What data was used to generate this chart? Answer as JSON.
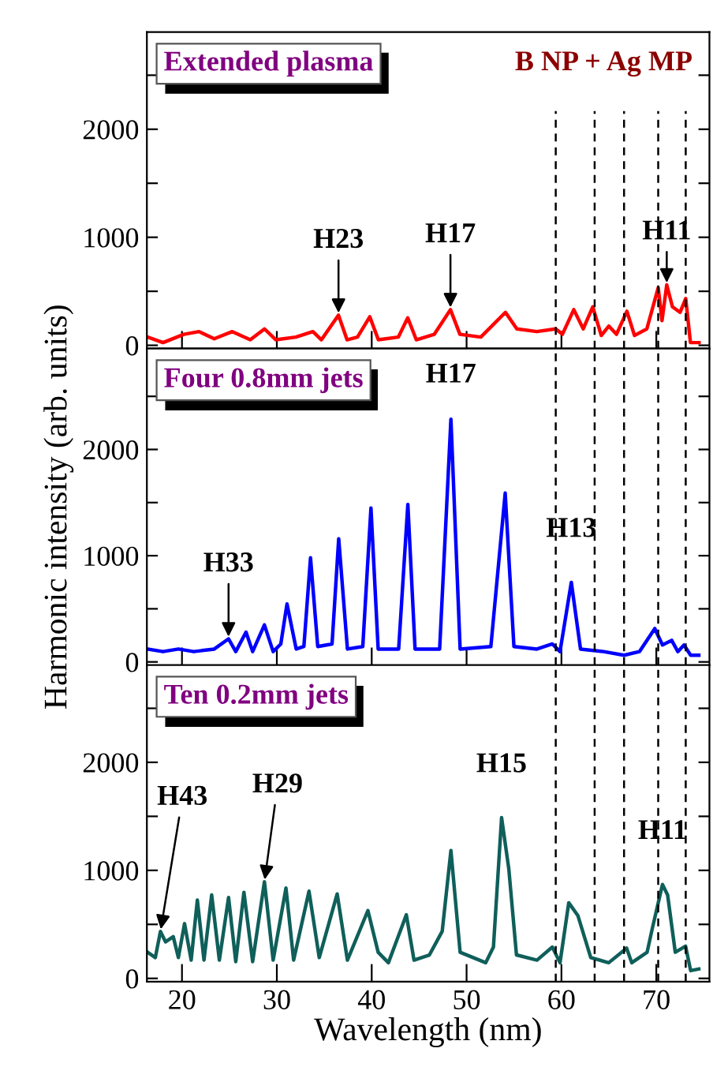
{
  "chart_data": [
    {
      "type": "line",
      "title": "Extended plasma",
      "xlim": [
        16.3,
        75.6
      ],
      "ylim": [
        -30,
        2900
      ],
      "tick_labels": "y",
      "grid": false,
      "legend": false,
      "yticks": [
        0,
        {
          "value": 500,
          "label": null
        },
        1000,
        {
          "value": 1500,
          "label": null
        },
        2000,
        {
          "value": 2500,
          "label": null
        }
      ],
      "xticks": [
        20,
        30,
        40,
        50,
        60,
        70
      ],
      "series": [
        {
          "color": "#ff0000",
          "x": [
            16.38,
            18.0,
            20.2,
            21.8,
            23.4,
            25.3,
            27.2,
            28.7,
            29.9,
            32.0,
            33.8,
            34.7,
            36.5,
            37.4,
            38.5,
            39.8,
            40.7,
            42.8,
            43.8,
            44.7,
            46.6,
            48.3,
            49.3,
            51.5,
            54.1,
            55.3,
            57.4,
            59.4,
            60.1,
            61.3,
            62.3,
            63.3,
            64.2,
            65.0,
            65.8,
            66.9,
            67.7,
            69.0,
            70.2,
            70.6,
            71.1,
            71.7,
            72.5,
            73.1,
            73.6,
            74.5
          ],
          "values": [
            76,
            25,
            102,
            127,
            61,
            127,
            51,
            152,
            51,
            76,
            127,
            51,
            279,
            51,
            76,
            264,
            51,
            76,
            254,
            51,
            102,
            330,
            102,
            76,
            305,
            152,
            127,
            152,
            102,
            330,
            152,
            356,
            91,
            178,
            102,
            315,
            91,
            152,
            533,
            229,
            559,
            356,
            305,
            432,
            25,
            25
          ]
        }
      ],
      "annotations": [
        "B NP + Ag MP",
        {
          "text": "H23",
          "x": 36.5,
          "y": 279
        },
        {
          "text": "H17",
          "x": 48.3,
          "y": 330
        },
        {
          "text": "H11",
          "x": 71.1,
          "y": 559
        }
      ],
      "ref_lines": [
        {
          "axis": "x",
          "value": 59.4,
          "line_style": "dashed",
          "color": "#000000"
        },
        {
          "axis": "x",
          "value": 63.5,
          "line_style": "dashed",
          "color": "#000000"
        },
        {
          "axis": "x",
          "value": 66.6,
          "line_style": "dashed",
          "color": "#000000"
        },
        {
          "axis": "x",
          "value": 70.2,
          "line_style": "dashed",
          "color": "#000000"
        },
        {
          "axis": "x",
          "value": 73.1,
          "line_style": "dashed",
          "color": "#000000"
        }
      ]
    },
    {
      "type": "line",
      "title": "Four 0.8mm jets",
      "ylabel": "Harmonic intensity (arb. units)",
      "xlim": [
        16.3,
        75.6
      ],
      "ylim": [
        -30,
        2950
      ],
      "tick_labels": "y",
      "grid": false,
      "legend": false,
      "yticks": [
        0,
        {
          "value": 500,
          "label": null
        },
        1000,
        {
          "value": 1500,
          "label": null
        },
        2000,
        {
          "value": 2500,
          "label": null
        }
      ],
      "xticks": [
        20,
        30,
        40,
        50,
        60,
        70
      ],
      "series": [
        {
          "color": "#0000ff",
          "x": [
            16.38,
            18.0,
            19.62,
            21.24,
            23.4,
            24.91,
            25.67,
            26.75,
            27.45,
            28.69,
            29.61,
            30.42,
            31.07,
            32.04,
            32.85,
            33.55,
            34.31,
            35.82,
            36.52,
            37.44,
            39.06,
            39.92,
            40.68,
            42.84,
            43.81,
            44.57,
            47.16,
            48.35,
            49.32,
            52.56,
            54.07,
            54.99,
            57.42,
            59.04,
            59.85,
            61.04,
            62.01,
            64.44,
            66.6,
            68.22,
            69.84,
            70.65,
            71.62,
            72.27,
            72.92,
            73.62,
            74.48
          ],
          "values": [
            121,
            97,
            121,
            97,
            121,
            217,
            97,
            280,
            97,
            348,
            97,
            169,
            546,
            121,
            145,
            980,
            145,
            169,
            1159,
            121,
            145,
            1449,
            121,
            121,
            1483,
            121,
            121,
            2285,
            121,
            145,
            1589,
            145,
            121,
            169,
            97,
            749,
            121,
            97,
            63,
            97,
            314,
            159,
            203,
            97,
            159,
            63,
            63
          ]
        }
      ],
      "annotations": [
        {
          "text": "H33",
          "x": 24.91,
          "y": 217
        },
        {
          "text": "H17",
          "x": 48.35,
          "y": 2285
        },
        {
          "text": "H13",
          "x": 61.04,
          "y": 749
        }
      ],
      "ref_lines": [
        {
          "axis": "x",
          "value": 59.4,
          "line_style": "dashed",
          "color": "#000000"
        },
        {
          "axis": "x",
          "value": 63.5,
          "line_style": "dashed",
          "color": "#000000"
        },
        {
          "axis": "x",
          "value": 66.6,
          "line_style": "dashed",
          "color": "#000000"
        },
        {
          "axis": "x",
          "value": 70.2,
          "line_style": "dashed",
          "color": "#000000"
        },
        {
          "axis": "x",
          "value": 73.1,
          "line_style": "dashed",
          "color": "#000000"
        }
      ]
    },
    {
      "type": "line",
      "title": "Ten 0.2mm jets",
      "xlabel": "Wavelength (nm)",
      "xlim": [
        16.3,
        75.6
      ],
      "ylim": [
        -30,
        2900
      ],
      "grid": false,
      "legend": false,
      "yticks": [
        0,
        {
          "value": 500,
          "label": null
        },
        1000,
        {
          "value": 1500,
          "label": null
        },
        2000,
        {
          "value": 2500,
          "label": null
        }
      ],
      "xticks": [
        20,
        30,
        40,
        50,
        60,
        70
      ],
      "series": [
        {
          "color": "#0f5f5a",
          "x": [
            16.38,
            17.19,
            17.73,
            18.27,
            19.08,
            19.62,
            20.27,
            20.97,
            21.62,
            22.32,
            23.13,
            23.94,
            24.91,
            25.67,
            26.53,
            27.45,
            28.69,
            29.61,
            30.96,
            31.77,
            33.39,
            34.47,
            36.36,
            37.44,
            39.6,
            40.68,
            41.76,
            43.65,
            44.46,
            46.08,
            47.43,
            48.35,
            49.32,
            52.02,
            52.83,
            53.69,
            54.45,
            55.26,
            57.42,
            59.04,
            59.85,
            60.77,
            61.74,
            63.09,
            64.98,
            66.87,
            67.41,
            69.03,
            69.57,
            70.65,
            71.19,
            72.0,
            73.08,
            73.62,
            74.48
          ],
          "values": [
            242,
            193,
            435,
            338,
            386,
            193,
            507,
            169,
            725,
            169,
            773,
            169,
            749,
            155,
            797,
            155,
            894,
            169,
            836,
            169,
            807,
            193,
            782,
            169,
            628,
            242,
            145,
            589,
            169,
            217,
            435,
            1183,
            242,
            145,
            290,
            1488,
            1014,
            217,
            169,
            290,
            145,
            700,
            580,
            193,
            145,
            280,
            145,
            242,
            459,
            869,
            773,
            242,
            299,
            72,
            87
          ]
        }
      ],
      "annotations": [
        {
          "text": "H43",
          "x": 17.73,
          "y": 435
        },
        {
          "text": "H29",
          "x": 28.69,
          "y": 894
        },
        {
          "text": "H15",
          "x": 53.69,
          "y": 1488
        },
        {
          "text": "H11",
          "x": 70.65,
          "y": 869
        }
      ],
      "ref_lines": [
        {
          "axis": "x",
          "value": 59.4,
          "line_style": "dashed",
          "color": "#000000"
        },
        {
          "axis": "x",
          "value": 63.5,
          "line_style": "dashed",
          "color": "#000000"
        },
        {
          "axis": "x",
          "value": 66.6,
          "line_style": "dashed",
          "color": "#000000"
        },
        {
          "axis": "x",
          "value": 70.2,
          "line_style": "dashed",
          "color": "#000000"
        },
        {
          "axis": "x",
          "value": 73.1,
          "line_style": "dashed",
          "color": "#000000"
        }
      ]
    }
  ]
}
